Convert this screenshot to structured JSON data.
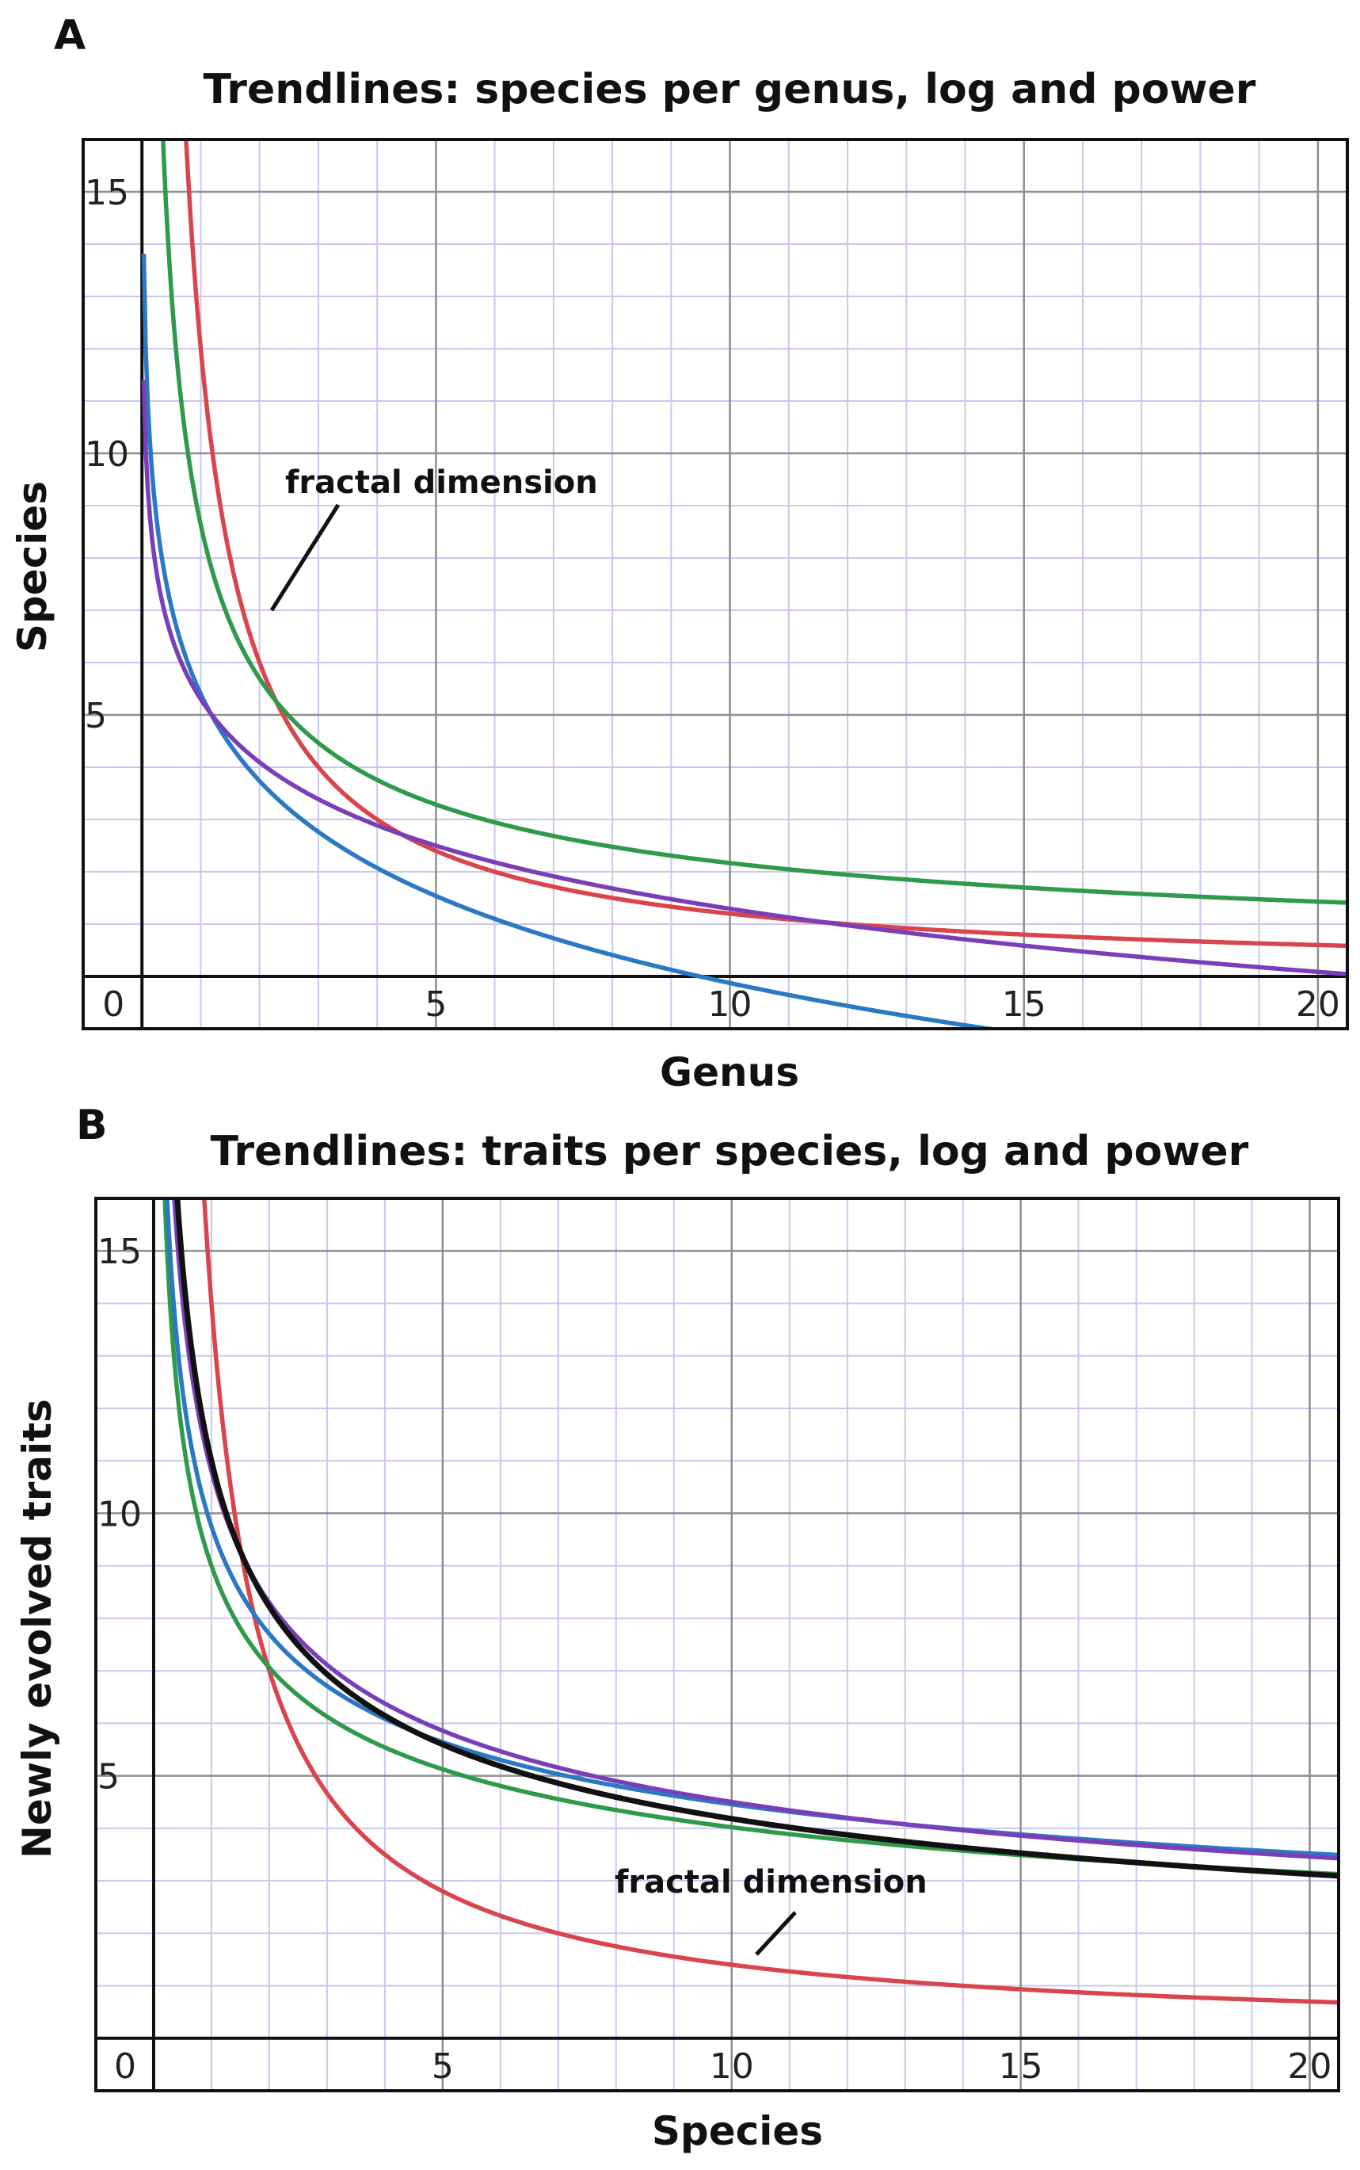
{
  "chart_data": [
    {
      "type": "line",
      "panel": "A",
      "title": "Trendlines: species per genus, log and power",
      "xlabel": "Genus",
      "ylabel": "Species",
      "xlim": [
        -1,
        20.5
      ],
      "ylim": [
        -1,
        16
      ],
      "xticks": [
        0,
        5,
        10,
        15,
        20
      ],
      "yticks": [
        5,
        10,
        15
      ],
      "annotation": {
        "text": "fractal dimension",
        "points_to": "red series"
      },
      "grid": true,
      "series": [
        {
          "name": "red",
          "color": "#d9444d",
          "model": "power",
          "a": 12.0,
          "b": -1.0
        },
        {
          "name": "green",
          "color": "#2e9a4a",
          "model": "power",
          "a": 8.63,
          "b": -0.6
        },
        {
          "name": "blue",
          "color": "#2b78c4",
          "model": "log",
          "a": 5.4,
          "b": -2.4
        },
        {
          "name": "purple",
          "color": "#7a3fb8",
          "model": "log",
          "a": 5.3,
          "b": -1.74
        }
      ]
    },
    {
      "type": "line",
      "panel": "B",
      "title": "Trendlines: traits per species, log and power",
      "xlabel": "Species",
      "ylabel": "Newly evolved traits",
      "xlim": [
        -1,
        20.5
      ],
      "ylim": [
        -1,
        16
      ],
      "xticks": [
        0,
        5,
        10,
        15,
        20
      ],
      "yticks": [
        5,
        10,
        15
      ],
      "annotation": {
        "text": "fractal dimension",
        "points_to": "red series"
      },
      "grid": true,
      "series": [
        {
          "name": "red",
          "color": "#d9444d",
          "model": "power",
          "a": 14.0,
          "b": -1.0
        },
        {
          "name": "green",
          "color": "#2e9a4a",
          "model": "power",
          "a": 9.0,
          "b": -0.35
        },
        {
          "name": "blue",
          "color": "#2b78c4",
          "model": "power",
          "a": 9.75,
          "b": -0.34
        },
        {
          "name": "purple",
          "color": "#7a3fb8",
          "model": "power",
          "a": 10.8,
          "b": -0.38
        },
        {
          "name": "black",
          "color": "#111111",
          "model": "power",
          "a": 11.0,
          "b": -0.42
        }
      ]
    }
  ],
  "colors": {
    "grid_major": "#8f8f8f",
    "grid_minor": "#c8c8ee",
    "frame": "#111111"
  }
}
